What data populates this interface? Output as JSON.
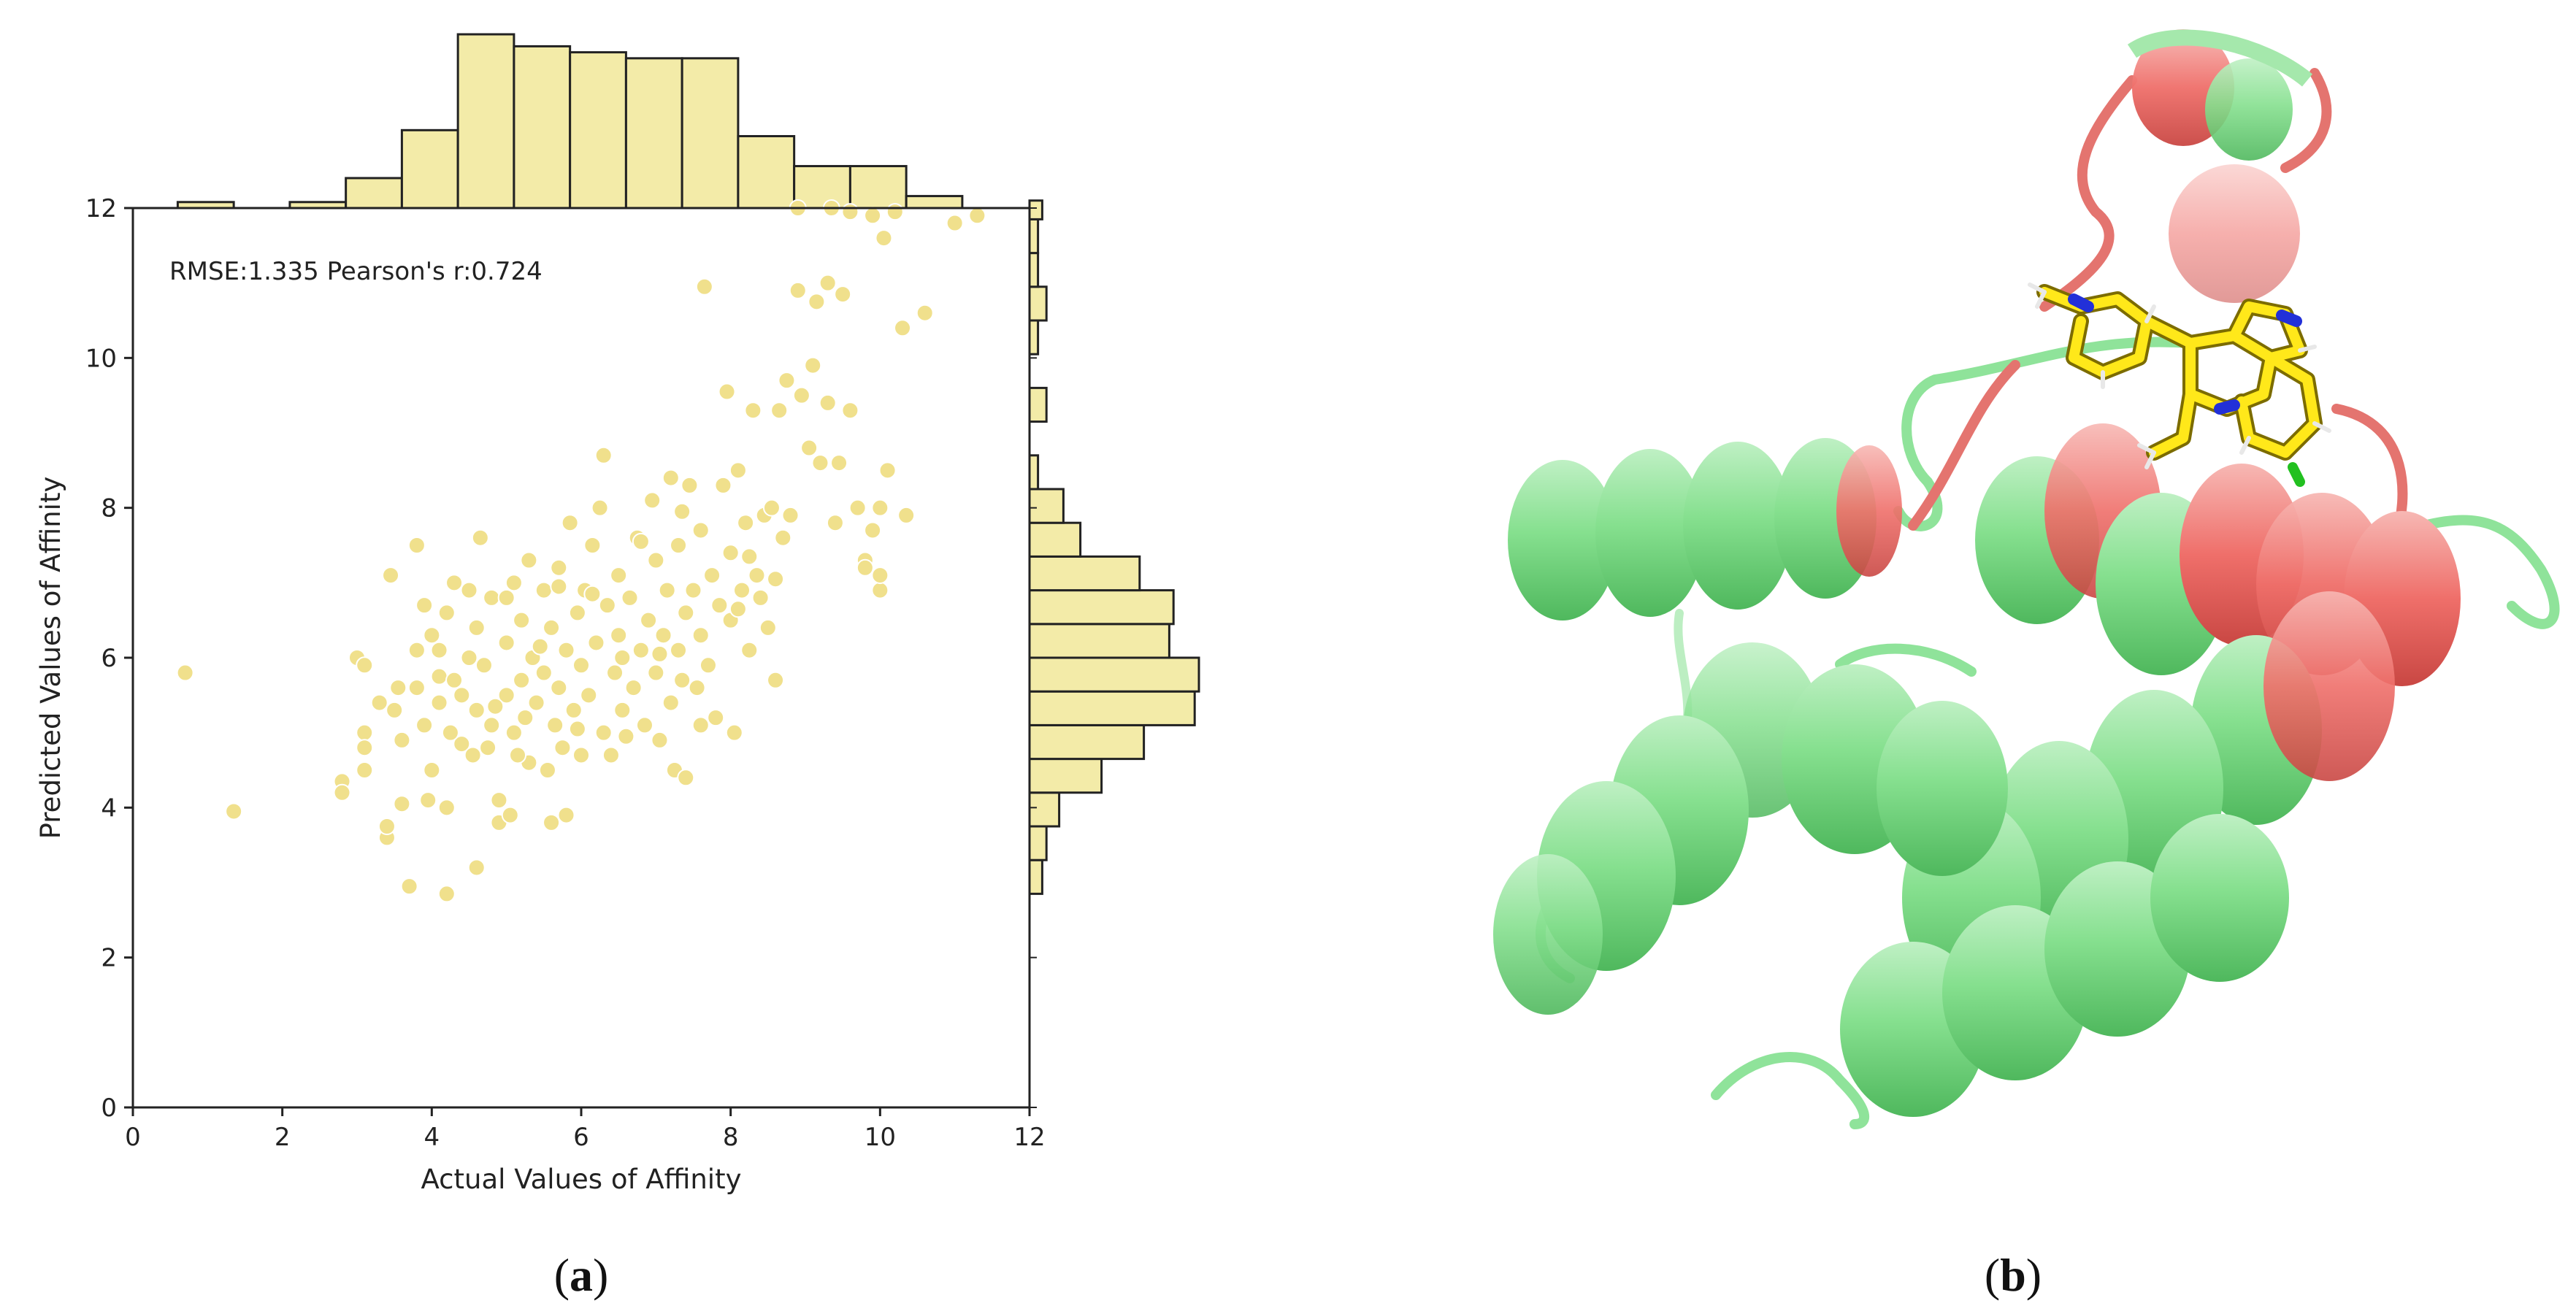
{
  "chart_data": {
    "type": "scatter",
    "panel_label": {
      "open": "(",
      "letter": "a",
      "close": ")"
    },
    "xlabel": "Actual Values of Affinity",
    "ylabel": "Predicted Values of Affinity",
    "annotation": "RMSE:1.335 Pearson's r:0.724",
    "xlim": [
      0,
      12
    ],
    "ylim": [
      0,
      12
    ],
    "xticks": [
      "0",
      "2",
      "4",
      "6",
      "8",
      "10",
      "12"
    ],
    "yticks": [
      "0",
      "2",
      "4",
      "6",
      "8",
      "10",
      "12"
    ],
    "grid": false,
    "colors": {
      "marker": "#f0e08c",
      "marker_edge": "#ffffff",
      "bar": "#f3eba8",
      "bar_edge": "#222222"
    },
    "points": [
      [
        0.7,
        5.8
      ],
      [
        1.35,
        3.95
      ],
      [
        2.8,
        4.35
      ],
      [
        2.8,
        4.2
      ],
      [
        3.0,
        6.0
      ],
      [
        3.1,
        5.9
      ],
      [
        3.1,
        5.0
      ],
      [
        3.1,
        4.8
      ],
      [
        3.3,
        5.4
      ],
      [
        3.4,
        3.6
      ],
      [
        3.4,
        3.75
      ],
      [
        3.45,
        7.1
      ],
      [
        3.5,
        5.3
      ],
      [
        3.6,
        4.05
      ],
      [
        3.6,
        4.9
      ],
      [
        3.7,
        2.95
      ],
      [
        3.8,
        6.1
      ],
      [
        3.8,
        5.6
      ],
      [
        3.8,
        7.5
      ],
      [
        3.9,
        5.1
      ],
      [
        3.95,
        4.1
      ],
      [
        4.0,
        4.5
      ],
      [
        4.0,
        6.3
      ],
      [
        4.1,
        5.75
      ],
      [
        4.1,
        5.4
      ],
      [
        4.2,
        2.85
      ],
      [
        4.2,
        4.0
      ],
      [
        4.2,
        6.6
      ],
      [
        4.3,
        5.7
      ],
      [
        4.3,
        7.0
      ],
      [
        4.4,
        4.85
      ],
      [
        4.4,
        5.5
      ],
      [
        4.5,
        6.0
      ],
      [
        4.5,
        6.9
      ],
      [
        4.55,
        4.7
      ],
      [
        4.6,
        5.3
      ],
      [
        4.6,
        6.4
      ],
      [
        4.6,
        3.2
      ],
      [
        4.65,
        7.6
      ],
      [
        4.7,
        5.9
      ],
      [
        4.75,
        4.8
      ],
      [
        4.8,
        6.8
      ],
      [
        4.8,
        5.1
      ],
      [
        4.9,
        4.1
      ],
      [
        4.9,
        3.8
      ],
      [
        5.0,
        5.5
      ],
      [
        5.0,
        6.2
      ],
      [
        5.0,
        6.8
      ],
      [
        5.05,
        3.9
      ],
      [
        5.1,
        5.0
      ],
      [
        5.1,
        7.0
      ],
      [
        5.2,
        5.7
      ],
      [
        5.2,
        6.5
      ],
      [
        5.25,
        5.2
      ],
      [
        5.3,
        7.3
      ],
      [
        5.3,
        4.6
      ],
      [
        5.35,
        6.0
      ],
      [
        5.4,
        5.4
      ],
      [
        5.5,
        5.8
      ],
      [
        5.5,
        6.9
      ],
      [
        5.55,
        4.5
      ],
      [
        5.6,
        3.8
      ],
      [
        5.6,
        6.4
      ],
      [
        5.65,
        5.1
      ],
      [
        5.7,
        5.6
      ],
      [
        5.7,
        7.2
      ],
      [
        5.75,
        4.8
      ],
      [
        5.8,
        6.1
      ],
      [
        5.8,
        3.9
      ],
      [
        5.85,
        7.8
      ],
      [
        5.9,
        5.3
      ],
      [
        5.95,
        6.6
      ],
      [
        6.0,
        5.9
      ],
      [
        6.0,
        4.7
      ],
      [
        6.05,
        6.9
      ],
      [
        6.1,
        5.5
      ],
      [
        6.15,
        7.5
      ],
      [
        6.2,
        6.2
      ],
      [
        6.25,
        8.0
      ],
      [
        6.3,
        5.0
      ],
      [
        6.3,
        8.7
      ],
      [
        6.35,
        6.7
      ],
      [
        6.4,
        4.7
      ],
      [
        6.45,
        5.8
      ],
      [
        6.5,
        6.3
      ],
      [
        6.5,
        7.1
      ],
      [
        6.55,
        5.3
      ],
      [
        6.6,
        4.95
      ],
      [
        6.65,
        6.8
      ],
      [
        6.7,
        5.6
      ],
      [
        6.75,
        7.6
      ],
      [
        6.8,
        6.1
      ],
      [
        6.85,
        5.1
      ],
      [
        6.9,
        6.5
      ],
      [
        6.95,
        8.1
      ],
      [
        7.0,
        5.8
      ],
      [
        7.0,
        7.3
      ],
      [
        7.05,
        4.9
      ],
      [
        7.1,
        6.3
      ],
      [
        7.15,
        6.9
      ],
      [
        7.2,
        5.4
      ],
      [
        7.2,
        8.4
      ],
      [
        7.25,
        4.5
      ],
      [
        7.3,
        6.1
      ],
      [
        7.3,
        7.5
      ],
      [
        7.35,
        5.7
      ],
      [
        7.4,
        6.6
      ],
      [
        7.4,
        4.4
      ],
      [
        7.45,
        8.3
      ],
      [
        7.5,
        6.9
      ],
      [
        7.55,
        5.6
      ],
      [
        7.6,
        7.7
      ],
      [
        7.6,
        6.3
      ],
      [
        7.65,
        10.95
      ],
      [
        7.7,
        5.9
      ],
      [
        7.75,
        7.1
      ],
      [
        7.8,
        5.2
      ],
      [
        7.85,
        6.7
      ],
      [
        7.9,
        8.3
      ],
      [
        7.95,
        9.55
      ],
      [
        8.0,
        6.5
      ],
      [
        8.0,
        7.4
      ],
      [
        8.05,
        5.0
      ],
      [
        8.1,
        8.5
      ],
      [
        8.15,
        6.9
      ],
      [
        8.2,
        7.8
      ],
      [
        8.25,
        6.1
      ],
      [
        8.3,
        9.3
      ],
      [
        8.35,
        7.1
      ],
      [
        8.4,
        6.8
      ],
      [
        8.45,
        7.9
      ],
      [
        8.5,
        6.4
      ],
      [
        8.55,
        8.0
      ],
      [
        8.6,
        5.7
      ],
      [
        8.65,
        9.3
      ],
      [
        8.7,
        7.6
      ],
      [
        8.75,
        9.7
      ],
      [
        8.8,
        7.9
      ],
      [
        8.9,
        10.9
      ],
      [
        8.95,
        9.5
      ],
      [
        9.05,
        8.8
      ],
      [
        9.1,
        9.9
      ],
      [
        9.15,
        10.75
      ],
      [
        9.2,
        8.6
      ],
      [
        9.3,
        9.4
      ],
      [
        9.3,
        11.0
      ],
      [
        9.4,
        7.8
      ],
      [
        9.5,
        10.85
      ],
      [
        9.6,
        9.3
      ],
      [
        9.7,
        8.0
      ],
      [
        9.8,
        7.3
      ],
      [
        9.9,
        11.9
      ],
      [
        10.0,
        8.0
      ],
      [
        10.0,
        6.9
      ],
      [
        10.05,
        11.6
      ],
      [
        10.1,
        8.5
      ],
      [
        10.2,
        11.95
      ],
      [
        10.3,
        10.4
      ],
      [
        10.35,
        7.9
      ],
      [
        10.6,
        10.6
      ],
      [
        11.0,
        11.8
      ],
      [
        11.3,
        11.9
      ],
      [
        8.9,
        12.0
      ],
      [
        9.35,
        12.0
      ],
      [
        9.6,
        11.95
      ],
      [
        3.1,
        4.5
      ],
      [
        3.9,
        6.7
      ],
      [
        4.25,
        5.0
      ],
      [
        4.85,
        5.35
      ],
      [
        5.45,
        6.15
      ],
      [
        5.95,
        5.05
      ],
      [
        6.55,
        6.0
      ],
      [
        7.05,
        6.05
      ],
      [
        7.6,
        5.1
      ],
      [
        8.1,
        6.65
      ],
      [
        8.6,
        7.05
      ],
      [
        9.8,
        7.2
      ],
      [
        10.0,
        7.1
      ],
      [
        4.1,
        6.1
      ],
      [
        5.15,
        4.7
      ],
      [
        5.7,
        6.95
      ],
      [
        6.15,
        6.85
      ],
      [
        6.8,
        7.55
      ],
      [
        7.35,
        7.95
      ],
      [
        8.25,
        7.35
      ],
      [
        9.45,
        8.6
      ],
      [
        9.9,
        7.7
      ],
      [
        3.55,
        5.6
      ]
    ],
    "marginal_x": {
      "bins": [
        0.6,
        1.35,
        2.1,
        2.85,
        3.6,
        4.35,
        5.1,
        5.85,
        6.6,
        7.35,
        8.1,
        8.85,
        9.6,
        10.35,
        11.1,
        11.85
      ],
      "counts": [
        1,
        0,
        1,
        5,
        13,
        29,
        27,
        26,
        25,
        25,
        12,
        7,
        7,
        2,
        0
      ]
    },
    "marginal_y": {
      "bins": [
        2.85,
        3.3,
        3.75,
        4.2,
        4.65,
        5.1,
        5.55,
        6.0,
        6.45,
        6.9,
        7.35,
        7.8,
        8.25,
        8.7,
        9.15,
        9.6,
        10.05,
        10.5,
        10.95,
        11.4,
        11.85,
        12.1
      ],
      "counts": [
        3,
        4,
        7,
        17,
        27,
        39,
        40,
        33,
        34,
        26,
        12,
        8,
        2,
        0,
        4,
        0,
        2,
        4,
        2,
        2,
        3
      ]
    }
  },
  "panel_b": {
    "panel_label": {
      "open": "(",
      "letter": "b",
      "close": ")"
    }
  }
}
